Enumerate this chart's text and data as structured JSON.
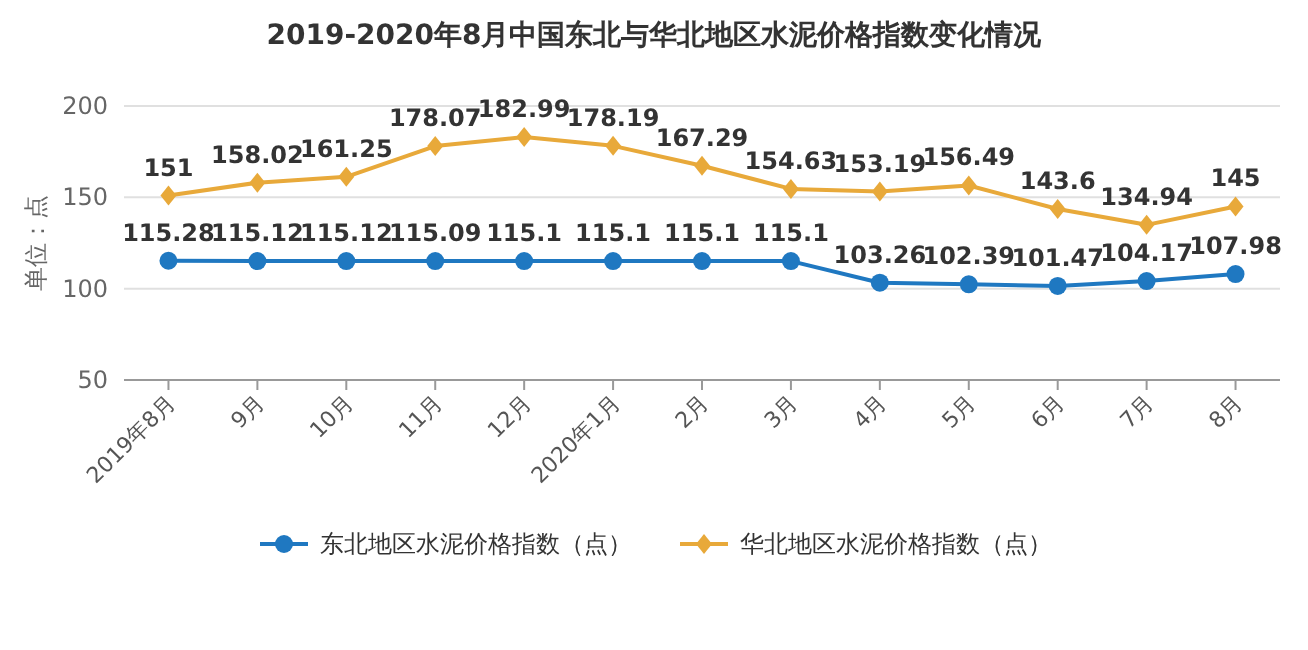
{
  "chart_data": {
    "type": "line",
    "title": "2019-2020年8月中国东北与华北地区水泥价格指数变化情况",
    "ylabel": "单位：点",
    "categories": [
      "2019年8月",
      "9月",
      "10月",
      "11月",
      "12月",
      "2020年1月",
      "2月",
      "3月",
      "4月",
      "5月",
      "6月",
      "7月",
      "8月"
    ],
    "series": [
      {
        "name": "东北地区水泥价格指数（点）",
        "color": "#1f78c1",
        "marker": "circle",
        "values": [
          115.28,
          115.12,
          115.12,
          115.09,
          115.1,
          115.1,
          115.1,
          115.1,
          103.26,
          102.39,
          101.47,
          104.17,
          107.98
        ]
      },
      {
        "name": "华北地区水泥价格指数（点）",
        "color": "#e8a93a",
        "marker": "diamond",
        "values": [
          151,
          158.02,
          161.25,
          178.07,
          182.99,
          178.19,
          167.29,
          154.63,
          153.19,
          156.49,
          143.6,
          134.94,
          145
        ]
      }
    ],
    "ylim": [
      50,
      200
    ],
    "yticks": [
      50,
      100,
      150,
      200
    ],
    "grid": "y",
    "legend": "bottom",
    "data_labels": true
  }
}
